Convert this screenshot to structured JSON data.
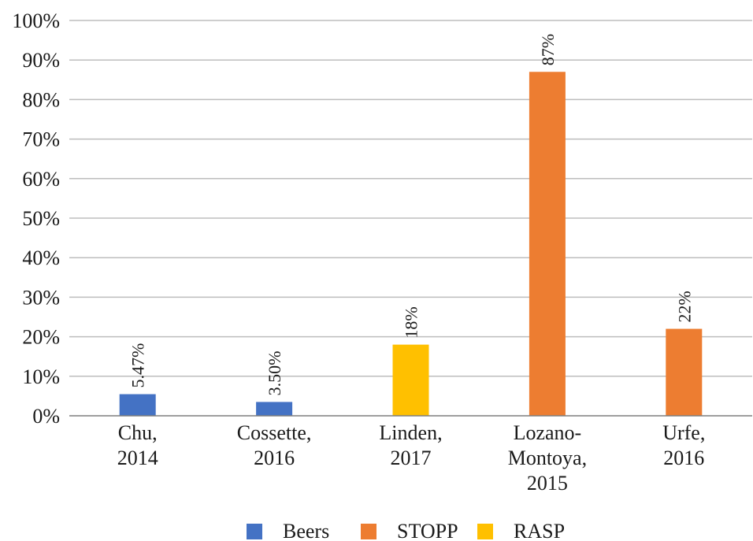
{
  "chart_data": {
    "type": "bar",
    "categories": [
      [
        "Chu,",
        "2014"
      ],
      [
        "Cossette,",
        "2016"
      ],
      [
        "Linden,",
        "2017"
      ],
      [
        "Lozano-",
        "Montoya,",
        "2015"
      ],
      [
        "Urfe,",
        "2016"
      ]
    ],
    "values": [
      5.47,
      3.5,
      18,
      87,
      22
    ],
    "data_labels": [
      "5.47%",
      "3.50%",
      "18%",
      "87%",
      "22%"
    ],
    "bar_series": [
      "Beers",
      "Beers",
      "RASP",
      "STOPP",
      "STOPP"
    ],
    "series": [
      {
        "name": "Beers",
        "color": "#4472c4"
      },
      {
        "name": "STOPP",
        "color": "#ed7d31"
      },
      {
        "name": "RASP",
        "color": "#ffc000"
      }
    ],
    "y_ticks": [
      "0%",
      "10%",
      "20%",
      "30%",
      "40%",
      "50%",
      "60%",
      "70%",
      "80%",
      "90%",
      "100%"
    ],
    "ylim": [
      0,
      100
    ],
    "grid": true,
    "legend_position": "bottom",
    "title": "",
    "xlabel": "",
    "ylabel": ""
  }
}
